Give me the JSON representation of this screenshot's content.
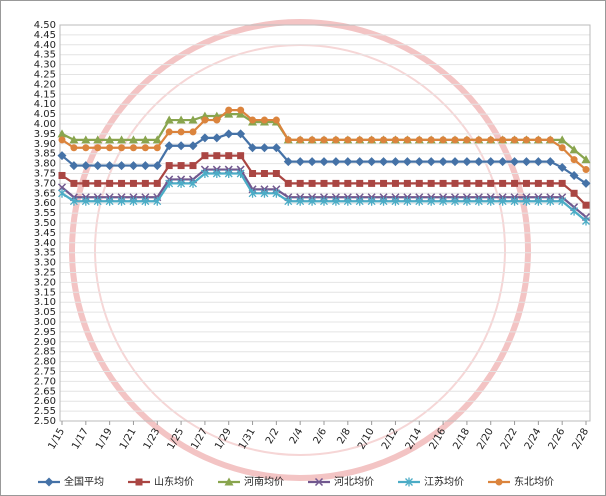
{
  "chart_data": {
    "type": "line",
    "categories": [
      "1/15",
      null,
      "1/17",
      null,
      "1/19",
      null,
      "1/21",
      null,
      "1/23",
      null,
      "1/25",
      null,
      "1/27",
      null,
      "1/29",
      null,
      "1/31",
      null,
      "2/2",
      null,
      "2/4",
      null,
      "2/6",
      null,
      "2/8",
      null,
      "2/10",
      null,
      "2/12",
      null,
      "2/14",
      null,
      "2/16",
      null,
      "2/18",
      null,
      "2/20",
      null,
      "2/22",
      null,
      "2/24",
      null,
      "2/26",
      null,
      "2/28"
    ],
    "series": [
      {
        "name": "全国平均",
        "color": "#4572a7",
        "marker": "diamond",
        "values": [
          3.84,
          3.79,
          3.79,
          3.79,
          3.79,
          3.79,
          3.79,
          3.79,
          3.79,
          3.89,
          3.89,
          3.89,
          3.93,
          3.93,
          3.95,
          3.95,
          3.88,
          3.88,
          3.88,
          3.81,
          3.81,
          3.81,
          3.81,
          3.81,
          3.81,
          3.81,
          3.81,
          3.81,
          3.81,
          3.81,
          3.81,
          3.81,
          3.81,
          3.81,
          3.81,
          3.81,
          3.81,
          3.81,
          3.81,
          3.81,
          3.81,
          3.81,
          3.78,
          3.74,
          3.7
        ]
      },
      {
        "name": "山东均价",
        "color": "#aa4643",
        "marker": "square",
        "values": [
          3.74,
          3.7,
          3.7,
          3.7,
          3.7,
          3.7,
          3.7,
          3.7,
          3.7,
          3.79,
          3.79,
          3.79,
          3.84,
          3.84,
          3.84,
          3.84,
          3.75,
          3.75,
          3.75,
          3.7,
          3.7,
          3.7,
          3.7,
          3.7,
          3.7,
          3.7,
          3.7,
          3.7,
          3.7,
          3.7,
          3.7,
          3.7,
          3.7,
          3.7,
          3.7,
          3.7,
          3.7,
          3.7,
          3.7,
          3.7,
          3.7,
          3.7,
          3.7,
          3.65,
          3.59
        ]
      },
      {
        "name": "河南均价",
        "color": "#89a54e",
        "marker": "triangle",
        "values": [
          3.95,
          3.92,
          3.92,
          3.92,
          3.92,
          3.92,
          3.92,
          3.92,
          3.92,
          4.02,
          4.02,
          4.02,
          4.04,
          4.04,
          4.05,
          4.05,
          4.01,
          4.01,
          4.01,
          3.92,
          3.92,
          3.92,
          3.92,
          3.92,
          3.92,
          3.92,
          3.92,
          3.92,
          3.92,
          3.92,
          3.92,
          3.92,
          3.92,
          3.92,
          3.92,
          3.92,
          3.92,
          3.92,
          3.92,
          3.92,
          3.92,
          3.92,
          3.92,
          3.87,
          3.82
        ]
      },
      {
        "name": "河北均价",
        "color": "#71588f",
        "marker": "x",
        "values": [
          3.68,
          3.63,
          3.63,
          3.63,
          3.63,
          3.63,
          3.63,
          3.63,
          3.63,
          3.72,
          3.72,
          3.72,
          3.77,
          3.77,
          3.77,
          3.77,
          3.67,
          3.67,
          3.67,
          3.63,
          3.63,
          3.63,
          3.63,
          3.63,
          3.63,
          3.63,
          3.63,
          3.63,
          3.63,
          3.63,
          3.63,
          3.63,
          3.63,
          3.63,
          3.63,
          3.63,
          3.63,
          3.63,
          3.63,
          3.63,
          3.63,
          3.63,
          3.63,
          3.58,
          3.53
        ]
      },
      {
        "name": "江苏均价",
        "color": "#4bacc6",
        "marker": "star",
        "values": [
          3.65,
          3.61,
          3.61,
          3.61,
          3.61,
          3.61,
          3.61,
          3.61,
          3.61,
          3.7,
          3.7,
          3.7,
          3.75,
          3.75,
          3.75,
          3.75,
          3.65,
          3.65,
          3.65,
          3.61,
          3.61,
          3.61,
          3.61,
          3.61,
          3.61,
          3.61,
          3.61,
          3.61,
          3.61,
          3.61,
          3.61,
          3.61,
          3.61,
          3.61,
          3.61,
          3.61,
          3.61,
          3.61,
          3.61,
          3.61,
          3.61,
          3.61,
          3.61,
          3.56,
          3.51
        ]
      },
      {
        "name": "东北均价",
        "color": "#db843d",
        "marker": "circle",
        "values": [
          3.92,
          3.88,
          3.88,
          3.88,
          3.88,
          3.88,
          3.88,
          3.88,
          3.88,
          3.96,
          3.96,
          3.96,
          4.02,
          4.02,
          4.07,
          4.07,
          4.02,
          4.02,
          4.02,
          3.92,
          3.92,
          3.92,
          3.92,
          3.92,
          3.92,
          3.92,
          3.92,
          3.92,
          3.92,
          3.92,
          3.92,
          3.92,
          3.92,
          3.92,
          3.92,
          3.92,
          3.92,
          3.92,
          3.92,
          3.92,
          3.92,
          3.92,
          3.88,
          3.82,
          3.77
        ]
      }
    ],
    "ylim": [
      2.5,
      4.5
    ],
    "yticks": [
      {
        "value": 2.5,
        "label": "2.50"
      },
      {
        "value": 2.55,
        "label": "2.55"
      },
      {
        "value": 2.6,
        "label": "2.60"
      },
      {
        "value": 2.65,
        "label": "2.65"
      },
      {
        "value": 2.7,
        "label": "2.70"
      },
      {
        "value": 2.75,
        "label": "2.75"
      },
      {
        "value": 2.8,
        "label": "2.80"
      },
      {
        "value": 2.85,
        "label": "2.85"
      },
      {
        "value": 2.9,
        "label": "2.90"
      },
      {
        "value": 2.95,
        "label": "2.95"
      },
      {
        "value": 3.0,
        "label": "3.00"
      },
      {
        "value": 3.05,
        "label": "3.05"
      },
      {
        "value": 3.1,
        "label": "3.10"
      },
      {
        "value": 3.15,
        "label": "3.15"
      },
      {
        "value": 3.2,
        "label": "3.20"
      },
      {
        "value": 3.25,
        "label": "3.25"
      },
      {
        "value": 3.3,
        "label": "3.30"
      },
      {
        "value": 3.35,
        "label": "3.35"
      },
      {
        "value": 3.4,
        "label": "3.40"
      },
      {
        "value": 3.45,
        "label": "3.45"
      },
      {
        "value": 3.5,
        "label": "3.50"
      },
      {
        "value": 3.55,
        "label": "3.55"
      },
      {
        "value": 3.6,
        "label": "3.60"
      },
      {
        "value": 3.65,
        "label": "3.65"
      },
      {
        "value": 3.7,
        "label": "3.70"
      },
      {
        "value": 3.75,
        "label": "3.75"
      },
      {
        "value": 3.8,
        "label": "3.80"
      },
      {
        "value": 3.85,
        "label": "3.85"
      },
      {
        "value": 3.9,
        "label": "3.90"
      },
      {
        "value": 3.95,
        "label": "3.95"
      },
      {
        "value": 4.0,
        "label": "4.00"
      },
      {
        "value": 4.05,
        "label": "4.05"
      },
      {
        "value": 4.1,
        "label": "4.10"
      },
      {
        "value": 4.15,
        "label": "4.15"
      },
      {
        "value": 4.2,
        "label": "4.20"
      },
      {
        "value": 4.25,
        "label": "4.25"
      },
      {
        "value": 4.3,
        "label": "4.30"
      },
      {
        "value": 4.35,
        "label": "4.35"
      },
      {
        "value": 4.4,
        "label": "4.40"
      },
      {
        "value": 4.45,
        "label": "4.45"
      },
      {
        "value": 4.5,
        "label": "4.50"
      }
    ],
    "grid": true,
    "legend": "bottom"
  }
}
